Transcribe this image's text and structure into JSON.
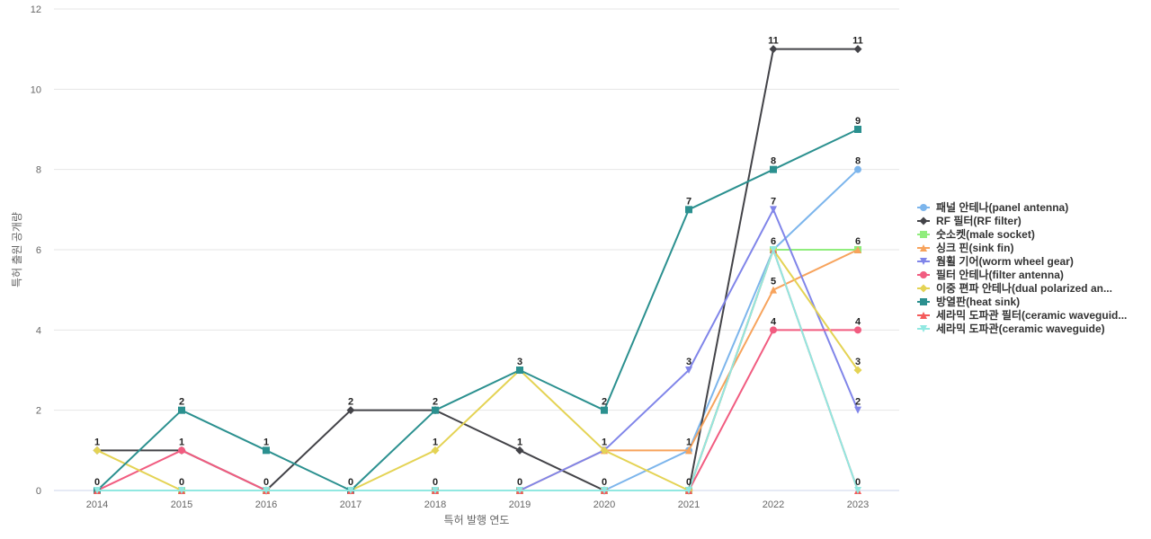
{
  "chart_data": {
    "type": "line",
    "xlabel": "특허 발행 연도",
    "ylabel": "특허 출원 공개량",
    "x": [
      "2014",
      "2015",
      "2016",
      "2017",
      "2018",
      "2019",
      "2020",
      "2021",
      "2022",
      "2023"
    ],
    "ylim": [
      0,
      12
    ],
    "yticks": [
      0,
      2,
      4,
      6,
      8,
      10,
      12
    ],
    "grid": true,
    "legend_position": "right",
    "series": [
      {
        "name": "패널 안테나(panel antenna)",
        "color": "#7cb5ec",
        "marker": "circle",
        "values": [
          0,
          0,
          0,
          0,
          0,
          0,
          0,
          1,
          6,
          8
        ]
      },
      {
        "name": "RF 필터(RF filter)",
        "color": "#434348",
        "marker": "diamond",
        "values": [
          1,
          1,
          0,
          2,
          2,
          1,
          0,
          0,
          11,
          11
        ]
      },
      {
        "name": "숫소켓(male socket)",
        "color": "#90ed7d",
        "marker": "square",
        "values": [
          0,
          0,
          0,
          0,
          0,
          0,
          0,
          0,
          6,
          6
        ]
      },
      {
        "name": "싱크 핀(sink fin)",
        "color": "#f7a35c",
        "marker": "triangle",
        "values": [
          0,
          0,
          0,
          0,
          0,
          0,
          1,
          1,
          5,
          6
        ]
      },
      {
        "name": "웜휠 기어(worm wheel gear)",
        "color": "#8085e9",
        "marker": "triangle-down",
        "values": [
          0,
          0,
          0,
          0,
          0,
          0,
          1,
          3,
          7,
          2
        ]
      },
      {
        "name": "필터 안테나(filter antenna)",
        "color": "#f15c80",
        "marker": "circle",
        "values": [
          0,
          1,
          0,
          0,
          0,
          0,
          0,
          0,
          4,
          4
        ]
      },
      {
        "name": "이중 편파 안테나(dual polarized an...",
        "color": "#e4d354",
        "marker": "diamond",
        "values": [
          1,
          0,
          0,
          0,
          1,
          3,
          1,
          0,
          6,
          3
        ]
      },
      {
        "name": "방열판(heat sink)",
        "color": "#2b908f",
        "marker": "square",
        "values": [
          0,
          2,
          1,
          0,
          2,
          3,
          2,
          7,
          8,
          9
        ]
      },
      {
        "name": "세라믹 도파관 필터(ceramic waveguid...",
        "color": "#f45b5b",
        "marker": "triangle",
        "values": [
          0,
          0,
          0,
          0,
          0,
          0,
          0,
          0,
          6,
          0
        ]
      },
      {
        "name": "세라믹 도파관(ceramic waveguide)",
        "color": "#91e8e1",
        "marker": "triangle-down",
        "values": [
          0,
          0,
          0,
          0,
          0,
          0,
          0,
          0,
          6,
          0
        ]
      }
    ],
    "data_labels": [
      {
        "x": "2014",
        "values": [
          1,
          0
        ]
      },
      {
        "x": "2015",
        "values": [
          2,
          1,
          0
        ]
      },
      {
        "x": "2016",
        "values": [
          1,
          0
        ]
      },
      {
        "x": "2017",
        "values": [
          2,
          0
        ]
      },
      {
        "x": "2018",
        "values": [
          2,
          1,
          0
        ]
      },
      {
        "x": "2019",
        "values": [
          3,
          1,
          0
        ]
      },
      {
        "x": "2020",
        "values": [
          2,
          1,
          0
        ]
      },
      {
        "x": "2021",
        "values": [
          7,
          3,
          1,
          0
        ]
      },
      {
        "x": "2022",
        "values": [
          11,
          8,
          7,
          6,
          5,
          4
        ]
      },
      {
        "x": "2023",
        "values": [
          11,
          9,
          8,
          6,
          4,
          3,
          2,
          0
        ]
      }
    ]
  }
}
